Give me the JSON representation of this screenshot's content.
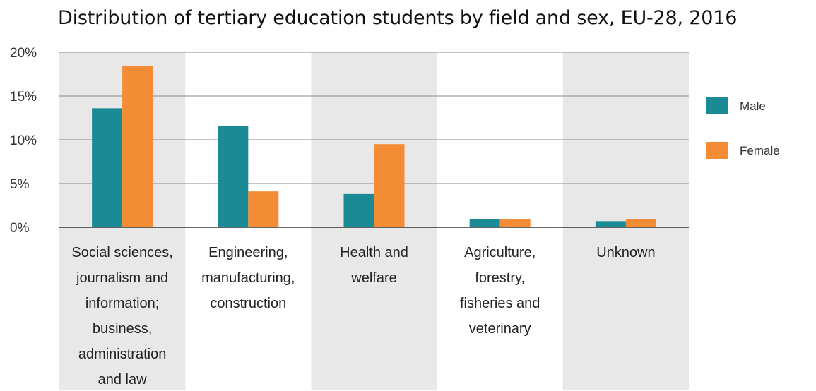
{
  "title": "Distribution of tertiary education students by field and sex, EU-28, 2016",
  "chart_data": {
    "type": "bar",
    "title": "Distribution of tertiary education students by field and sex, EU-28, 2016",
    "categories": [
      [
        "Social sciences,",
        "journalism and",
        "information;",
        "business,",
        "administration",
        "and law"
      ],
      [
        "Engineering,",
        "manufacturing,",
        "construction"
      ],
      [
        "Health and",
        "welfare"
      ],
      [
        "Agriculture,",
        "forestry,",
        "fisheries and",
        "veterinary"
      ],
      [
        "Unknown"
      ]
    ],
    "series": [
      {
        "name": "Male",
        "color": "#1a8a94",
        "values": [
          13.6,
          11.6,
          3.8,
          0.9,
          0.7
        ]
      },
      {
        "name": "Female",
        "color": "#f38c34",
        "values": [
          18.4,
          4.1,
          9.5,
          0.9,
          0.9
        ]
      }
    ],
    "yticks": [
      "0%",
      "5%",
      "10%",
      "15%",
      "20%"
    ],
    "ylim": [
      0,
      20
    ],
    "grid": true,
    "legend_position": "right",
    "band_color": "#e8e8e8",
    "grid_color": "#8a8a8a"
  }
}
